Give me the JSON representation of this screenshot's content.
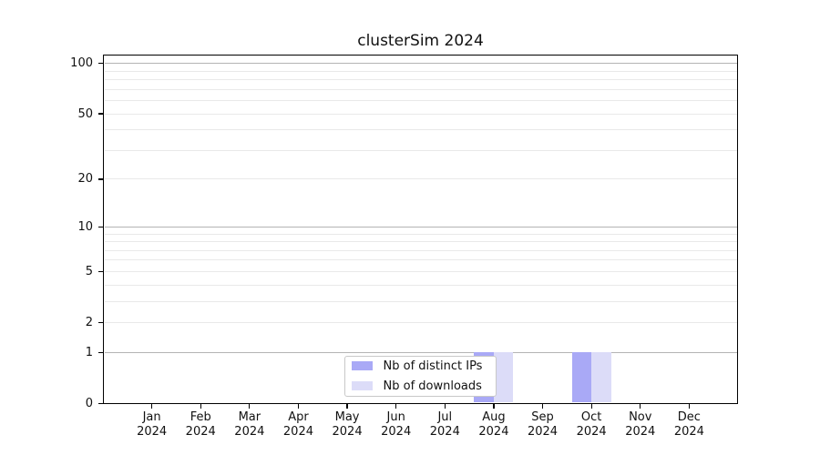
{
  "chart_data": {
    "type": "bar",
    "title": "clusterSim 2024",
    "x_month_labels": [
      "Jan",
      "Feb",
      "Mar",
      "Apr",
      "May",
      "Jun",
      "Jul",
      "Aug",
      "Sep",
      "Oct",
      "Nov",
      "Dec"
    ],
    "x_year_label": "2024",
    "series": [
      {
        "name": "Nb of distinct IPs",
        "color": "#a9a9f6",
        "values": [
          0,
          0,
          0,
          0,
          0,
          0,
          0,
          1,
          0,
          1,
          0,
          0
        ]
      },
      {
        "name": "Nb of downloads",
        "color": "#dcdcf8",
        "values": [
          0,
          0,
          0,
          0,
          0,
          0,
          0,
          1,
          0,
          1,
          0,
          0
        ]
      }
    ],
    "y_axis": {
      "scale": "log1p",
      "tick_labels": [
        "0",
        "1",
        "2",
        "5",
        "10",
        "20",
        "50",
        "100"
      ],
      "tick_values": [
        0,
        1,
        2,
        5,
        10,
        20,
        50,
        100
      ],
      "major_grid_values": [
        1,
        10,
        100
      ],
      "minor_grid_values": [
        2,
        3,
        4,
        5,
        6,
        7,
        8,
        9,
        20,
        30,
        40,
        50,
        60,
        70,
        80,
        90
      ],
      "ylim": [
        0,
        113
      ]
    },
    "legend": {
      "position": "lower-center"
    },
    "grid": "horizontal-on",
    "colors": {
      "background": "#ffffff",
      "axis": "#000000",
      "major_grid": "#b4b4b4",
      "minor_grid": "#e9e9e9",
      "bar_distinct_ips": "#a9a9f6",
      "bar_downloads": "#dcdcf8",
      "legend_border": "#c8c8c8",
      "text": "#111111"
    }
  }
}
